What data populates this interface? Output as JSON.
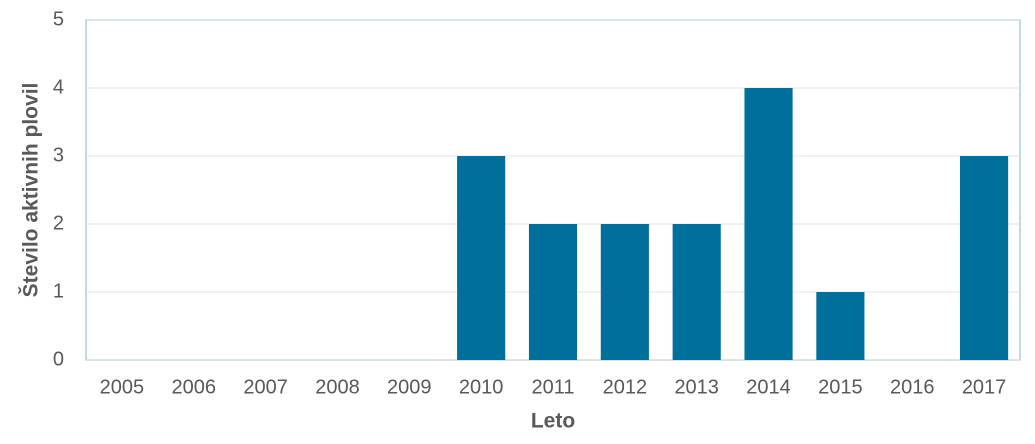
{
  "chart_data": {
    "type": "bar",
    "x_label": "Leto",
    "y_label": "Število aktivnih plovil",
    "categories": [
      "2005",
      "2006",
      "2007",
      "2008",
      "2009",
      "2010",
      "2011",
      "2012",
      "2013",
      "2014",
      "2015",
      "2016",
      "2017"
    ],
    "values": [
      0,
      0,
      0,
      0,
      0,
      3,
      2,
      2,
      2,
      4,
      1,
      0,
      3
    ],
    "color": "#006f9b",
    "ylim": [
      0,
      5
    ],
    "yticks": [
      0,
      1,
      2,
      3,
      4,
      5
    ],
    "grid": true
  }
}
